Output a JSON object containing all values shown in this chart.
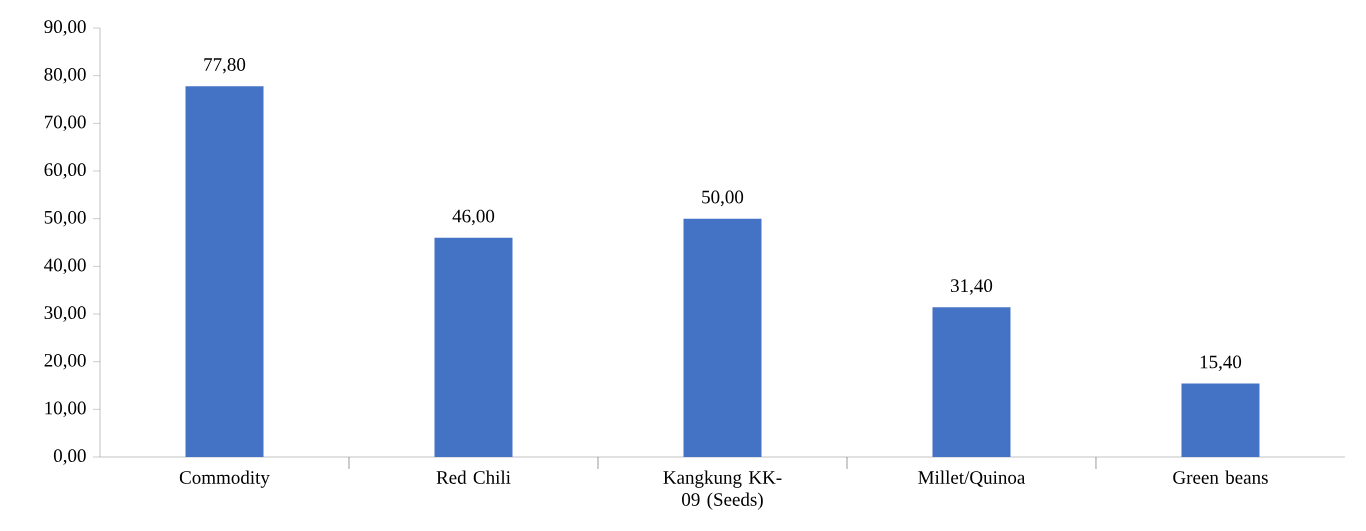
{
  "chart_data": {
    "type": "bar",
    "categories": [
      "Commodity",
      "Red Chili",
      "Kangkung KK-09 (Seeds)",
      "Millet/Quinoa",
      "Green beans"
    ],
    "values": [
      77.8,
      46.0,
      50.0,
      31.4,
      15.4
    ],
    "value_labels": [
      "77,80",
      "46,00",
      "50,00",
      "31,40",
      "15,40"
    ],
    "color": "#4472c4",
    "ylim": [
      0,
      90
    ],
    "yticks": [
      {
        "value": 0,
        "label": "0,00"
      },
      {
        "value": 10,
        "label": "10,00"
      },
      {
        "value": 20,
        "label": "20,00"
      },
      {
        "value": 30,
        "label": "30,00"
      },
      {
        "value": 40,
        "label": "40,00"
      },
      {
        "value": 50,
        "label": "50,00"
      },
      {
        "value": 60,
        "label": "60,00"
      },
      {
        "value": 70,
        "label": "70,00"
      },
      {
        "value": 80,
        "label": "80,00"
      },
      {
        "value": 90,
        "label": "90,00"
      }
    ],
    "grid": false
  }
}
